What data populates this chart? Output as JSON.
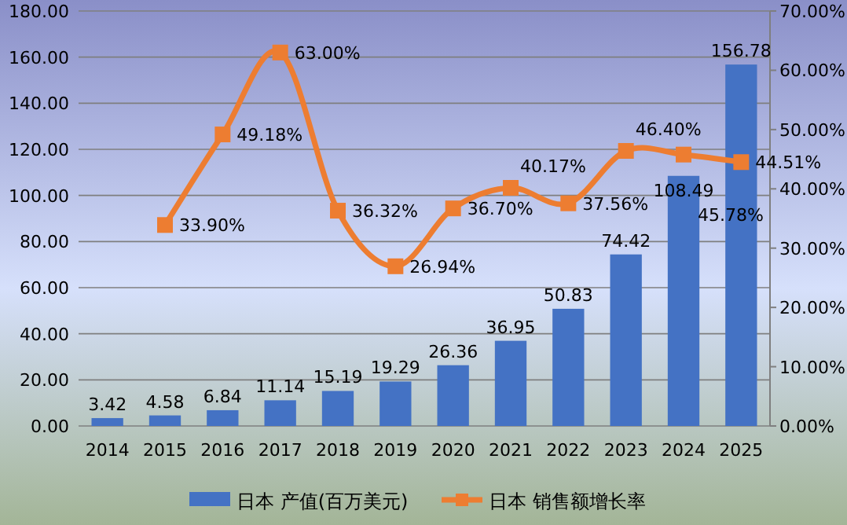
{
  "chart_data": {
    "type": "bar",
    "categories": [
      "2014",
      "2015",
      "2016",
      "2017",
      "2018",
      "2019",
      "2020",
      "2021",
      "2022",
      "2023",
      "2024",
      "2025"
    ],
    "series": [
      {
        "name": "日本 产值(百万美元)",
        "color": "#4472c4",
        "values": [
          3.42,
          4.58,
          6.84,
          11.14,
          15.19,
          19.29,
          26.36,
          36.95,
          50.83,
          74.42,
          108.49,
          156.78
        ],
        "value_labels": [
          "3.42",
          "4.58",
          "6.84",
          "11.14",
          "15.19",
          "19.29",
          "26.36",
          "36.95",
          "50.83",
          "74.42",
          "108.49",
          "156.78"
        ]
      },
      {
        "name": "日本 销售额增长率",
        "type": "line",
        "axis": "y2",
        "color": "#ed7d31",
        "values": [
          null,
          33.9,
          49.18,
          63.0,
          36.32,
          26.94,
          36.7,
          40.17,
          37.56,
          46.4,
          45.78,
          44.51
        ],
        "value_labels": [
          null,
          "33.90%",
          "49.18%",
          "63.00%",
          "36.32%",
          "26.94%",
          "36.70%",
          "40.17%",
          "37.56%",
          "46.40%",
          "45.78%",
          "44.51%"
        ]
      }
    ],
    "ylim": [
      0,
      180
    ],
    "yticks": [
      {
        "value": 0,
        "label": "0.00"
      },
      {
        "value": 20,
        "label": "20.00"
      },
      {
        "value": 40,
        "label": "40.00"
      },
      {
        "value": 60,
        "label": "60.00"
      },
      {
        "value": 80,
        "label": "80.00"
      },
      {
        "value": 100,
        "label": "100.00"
      },
      {
        "value": 120,
        "label": "120.00"
      },
      {
        "value": 140,
        "label": "140.00"
      },
      {
        "value": 160,
        "label": "160.00"
      },
      {
        "value": 180,
        "label": "180.00"
      }
    ],
    "y2lim": [
      0,
      70
    ],
    "y2ticks": [
      {
        "value": 0,
        "label": "0.00%"
      },
      {
        "value": 10,
        "label": "10.00%"
      },
      {
        "value": 20,
        "label": "20.00%"
      },
      {
        "value": 30,
        "label": "30.00%"
      },
      {
        "value": 40,
        "label": "40.00%"
      },
      {
        "value": 50,
        "label": "50.00%"
      },
      {
        "value": 60,
        "label": "60.00%"
      },
      {
        "value": 70,
        "label": "70.00%"
      }
    ],
    "grid": "y",
    "legend": "bottom",
    "marker": "square",
    "line_style": "solid"
  }
}
